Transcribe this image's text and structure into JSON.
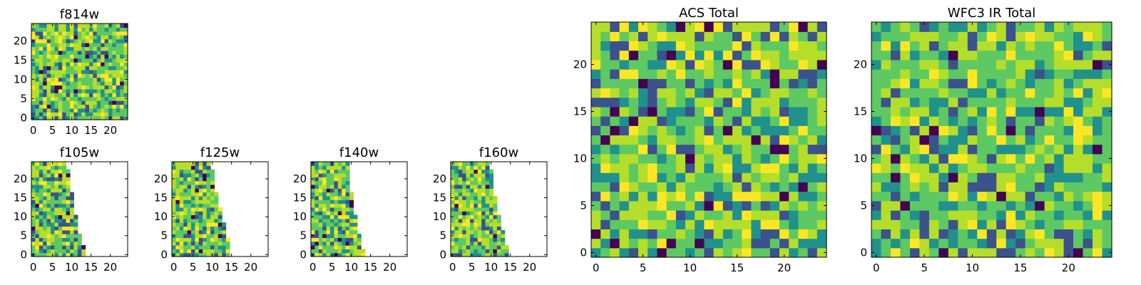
{
  "chart_data": [
    {
      "type": "heatmap",
      "title": "f814w",
      "cols": 25,
      "rows": 25,
      "x_range": [
        -0.5,
        24.5
      ],
      "y_range": [
        -0.5,
        24.5
      ],
      "x_ticks": [
        0,
        5,
        10,
        15,
        20
      ],
      "y_ticks": [
        0,
        5,
        10,
        15,
        20
      ],
      "row_widths": [
        25,
        25,
        25,
        25,
        25,
        25,
        25,
        25,
        25,
        25,
        25,
        25,
        25,
        25,
        25,
        25,
        25,
        25,
        25,
        25,
        25,
        25,
        25,
        25,
        25
      ],
      "seed": 11
    },
    {
      "type": "heatmap",
      "title": "f105w",
      "cols": 25,
      "rows": 25,
      "x_range": [
        -0.5,
        24.5
      ],
      "y_range": [
        -0.5,
        24.5
      ],
      "x_ticks": [
        0,
        5,
        10,
        15,
        20
      ],
      "y_ticks": [
        0,
        5,
        10,
        15,
        20
      ],
      "row_widths": [
        14,
        14,
        14,
        13,
        13,
        13,
        12,
        12,
        12,
        12,
        12,
        11,
        11,
        11,
        11,
        11,
        11,
        10,
        10,
        10,
        10,
        10,
        10,
        9,
        9
      ],
      "seed": 23
    },
    {
      "type": "heatmap",
      "title": "f125w",
      "cols": 25,
      "rows": 25,
      "x_range": [
        -0.5,
        24.5
      ],
      "y_range": [
        -0.5,
        24.5
      ],
      "x_ticks": [
        0,
        5,
        10,
        15,
        20
      ],
      "y_ticks": [
        0,
        5,
        10,
        15,
        20
      ],
      "row_widths": [
        15,
        15,
        15,
        15,
        15,
        14,
        14,
        14,
        14,
        13,
        13,
        13,
        13,
        12,
        12,
        12,
        12,
        11,
        11,
        11,
        11,
        11,
        11,
        10,
        10
      ],
      "seed": 37
    },
    {
      "type": "heatmap",
      "title": "f140w",
      "cols": 25,
      "rows": 25,
      "x_range": [
        -0.5,
        24.5
      ],
      "y_range": [
        -0.5,
        24.5
      ],
      "x_ticks": [
        0,
        5,
        10,
        15,
        20
      ],
      "y_ticks": [
        0,
        5,
        10,
        15,
        20
      ],
      "row_widths": [
        14,
        14,
        13,
        13,
        13,
        13,
        12,
        12,
        12,
        12,
        12,
        11,
        11,
        11,
        11,
        11,
        11,
        10,
        10,
        10,
        10,
        10,
        10,
        10,
        10
      ],
      "seed": 41
    },
    {
      "type": "heatmap",
      "title": "f160w",
      "cols": 25,
      "rows": 25,
      "x_range": [
        -0.5,
        24.5
      ],
      "y_range": [
        -0.5,
        24.5
      ],
      "x_ticks": [
        0,
        5,
        10,
        15,
        20
      ],
      "y_ticks": [
        0,
        5,
        10,
        15,
        20
      ],
      "row_widths": [
        15,
        15,
        15,
        14,
        14,
        14,
        14,
        13,
        13,
        13,
        13,
        12,
        12,
        12,
        12,
        12,
        11,
        11,
        11,
        11,
        11,
        11,
        11,
        10,
        10
      ],
      "seed": 53
    },
    {
      "type": "heatmap",
      "title": "ACS Total",
      "cols": 25,
      "rows": 25,
      "x_range": [
        -0.5,
        24.5
      ],
      "y_range": [
        -0.5,
        24.5
      ],
      "x_ticks": [
        0,
        5,
        10,
        15,
        20
      ],
      "y_ticks": [
        0,
        5,
        10,
        15,
        20
      ],
      "row_widths": [
        25,
        25,
        25,
        25,
        25,
        25,
        25,
        25,
        25,
        25,
        25,
        25,
        25,
        25,
        25,
        25,
        25,
        25,
        25,
        25,
        25,
        25,
        25,
        25,
        25
      ],
      "seed": 67
    },
    {
      "type": "heatmap",
      "title": "WFC3 IR Total",
      "cols": 25,
      "rows": 25,
      "x_range": [
        -0.5,
        24.5
      ],
      "y_range": [
        -0.5,
        24.5
      ],
      "x_ticks": [
        0,
        5,
        10,
        15,
        20
      ],
      "y_ticks": [
        0,
        5,
        10,
        15,
        20
      ],
      "row_widths": [
        25,
        25,
        25,
        25,
        25,
        25,
        25,
        25,
        25,
        25,
        25,
        25,
        25,
        25,
        25,
        25,
        25,
        25,
        25,
        25,
        25,
        25,
        25,
        25,
        25
      ],
      "seed": 79
    }
  ],
  "colormap": [
    "#440154",
    "#3b528b",
    "#21918c",
    "#5ec962",
    "#b5de2b",
    "#fde725"
  ]
}
